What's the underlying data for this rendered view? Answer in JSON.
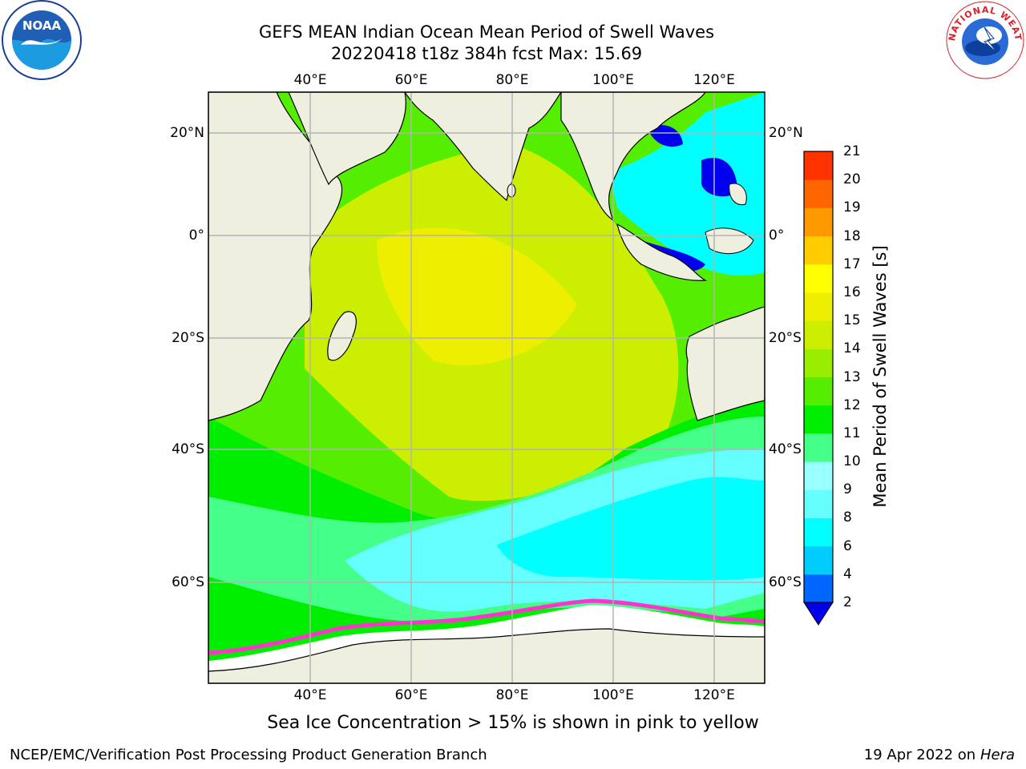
{
  "header": {
    "title_line1": "GEFS MEAN Indian Ocean Mean Period of Swell Waves",
    "title_line2": "20220418 t18z 384h fcst   Max: 15.69"
  },
  "logos": {
    "left": "NOAA",
    "right": "NATIONAL WEATHER SERVICE"
  },
  "map": {
    "lon_labels": [
      "40°E",
      "60°E",
      "80°E",
      "100°E",
      "120°E"
    ],
    "lat_labels": [
      "20°N",
      "0°",
      "20°S",
      "40°S",
      "60°S"
    ],
    "colors": {
      "land": "#efefe0",
      "grid": "#b3b3b3",
      "ice_edge": "#ff33cc"
    }
  },
  "colorbar": {
    "label": "Mean Period of Swell Waves [s]",
    "ticks": [
      "2",
      "4",
      "6",
      "8",
      "9",
      "10",
      "11",
      "12",
      "13",
      "14",
      "15",
      "16",
      "17",
      "18",
      "19",
      "20",
      "21"
    ],
    "colors": [
      "#0066ff",
      "#00ccff",
      "#00ffff",
      "#66ffff",
      "#99ffff",
      "#44ff88",
      "#00ee00",
      "#55ee00",
      "#99ee00",
      "#ccee00",
      "#eeee00",
      "#ffff00",
      "#ffcc00",
      "#ff9900",
      "#ff6600",
      "#ff3300",
      "#ff0000"
    ],
    "extend_color": "#0000ee"
  },
  "note": "Sea Ice Concentration > 15% is shown in pink to yellow",
  "footer": {
    "left": "NCEP/EMC/Verification Post Processing Product Generation Branch",
    "right_date": "19 Apr 2022 on ",
    "right_host": "Hera"
  }
}
